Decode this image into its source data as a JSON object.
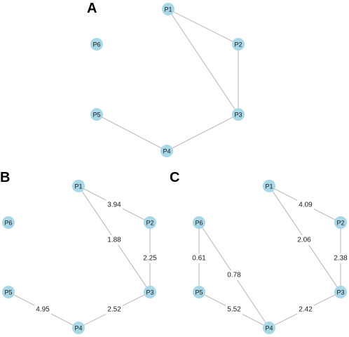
{
  "panels": [
    {
      "label": "A",
      "nodes": [
        "P1",
        "P2",
        "P3",
        "P4",
        "P5",
        "P6"
      ],
      "edges": [
        {
          "from": "P1",
          "to": "P2",
          "weight": ""
        },
        {
          "from": "P1",
          "to": "P3",
          "weight": ""
        },
        {
          "from": "P2",
          "to": "P3",
          "weight": ""
        },
        {
          "from": "P3",
          "to": "P4",
          "weight": ""
        },
        {
          "from": "P4",
          "to": "P5",
          "weight": ""
        }
      ]
    },
    {
      "label": "B",
      "nodes": [
        "P1",
        "P2",
        "P3",
        "P4",
        "P5",
        "P6"
      ],
      "edges": [
        {
          "from": "P1",
          "to": "P2",
          "weight": "3.94"
        },
        {
          "from": "P1",
          "to": "P3",
          "weight": "1.88"
        },
        {
          "from": "P2",
          "to": "P3",
          "weight": "2.25"
        },
        {
          "from": "P3",
          "to": "P4",
          "weight": "2.52"
        },
        {
          "from": "P4",
          "to": "P5",
          "weight": "4.95"
        }
      ]
    },
    {
      "label": "C",
      "nodes": [
        "P1",
        "P2",
        "P3",
        "P4",
        "P5",
        "P6"
      ],
      "edges": [
        {
          "from": "P1",
          "to": "P2",
          "weight": "4.09"
        },
        {
          "from": "P1",
          "to": "P3",
          "weight": "2.06"
        },
        {
          "from": "P2",
          "to": "P3",
          "weight": "2.38"
        },
        {
          "from": "P3",
          "to": "P4",
          "weight": "2.42"
        },
        {
          "from": "P4",
          "to": "P5",
          "weight": "5.52"
        },
        {
          "from": "P4",
          "to": "P6",
          "weight": "0.78"
        },
        {
          "from": "P5",
          "to": "P6",
          "weight": "0.61"
        }
      ]
    }
  ]
}
